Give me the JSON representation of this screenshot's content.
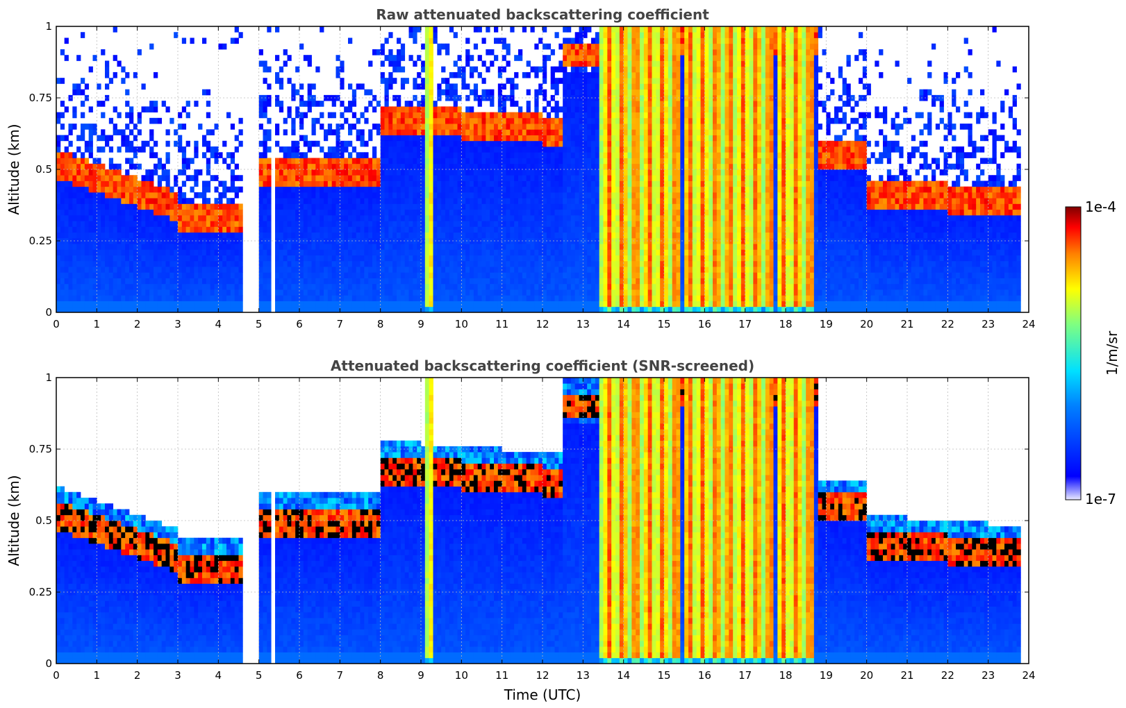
{
  "chart_data": [
    {
      "type": "heatmap",
      "title": "Raw attenuated backscattering coefficient",
      "xlabel": "",
      "ylabel": "Altitude (km)",
      "xlim": [
        0,
        24
      ],
      "ylim": [
        0,
        1
      ],
      "xticks": [
        "0",
        "1",
        "2",
        "3",
        "4",
        "5",
        "6",
        "7",
        "8",
        "9",
        "10",
        "11",
        "12",
        "13",
        "14",
        "15",
        "16",
        "17",
        "18",
        "19",
        "20",
        "21",
        "22",
        "23",
        "24"
      ],
      "yticks": [
        "0",
        "0.25",
        "0.5",
        "0.75",
        "1"
      ],
      "grid": true,
      "screened": false
    },
    {
      "type": "heatmap",
      "title": "Attenuated backscattering coefficient (SNR-screened)",
      "xlabel": "Time (UTC)",
      "ylabel": "Altitude (km)",
      "xlim": [
        0,
        24
      ],
      "ylim": [
        0,
        1
      ],
      "xticks": [
        "0",
        "1",
        "2",
        "3",
        "4",
        "5",
        "6",
        "7",
        "8",
        "9",
        "10",
        "11",
        "12",
        "13",
        "14",
        "15",
        "16",
        "17",
        "18",
        "19",
        "20",
        "21",
        "22",
        "23",
        "24"
      ],
      "yticks": [
        "0",
        "0.25",
        "0.5",
        "0.75",
        "1"
      ],
      "grid": true,
      "screened": true
    }
  ],
  "colorbar": {
    "label": "1/m/sr",
    "max_label": "1e-4",
    "min_label": "1e-7",
    "scale": "log",
    "range": [
      1e-07,
      0.0001
    ]
  },
  "colors": {
    "title": "#444444",
    "grid": "#bbbbbb"
  }
}
